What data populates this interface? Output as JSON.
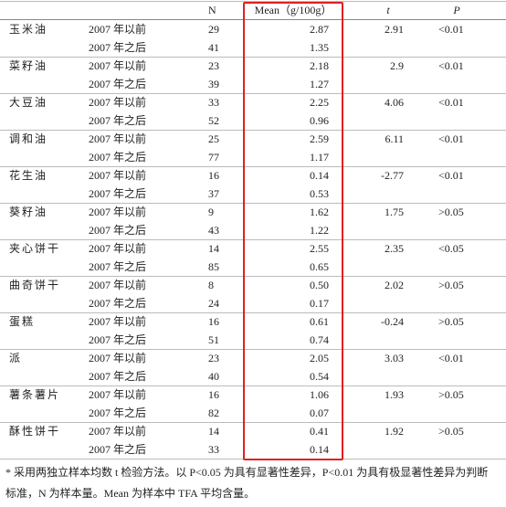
{
  "table": {
    "header": [
      "N",
      "Mean（g/100g）",
      "t",
      "P"
    ],
    "groups": [
      {
        "name": "玉米油",
        "t": "2.91",
        "p": "<0.01",
        "rows": [
          {
            "period": "2007 年以前",
            "n": "29",
            "mean": "2.87"
          },
          {
            "period": "2007 年之后",
            "n": "41",
            "mean": "1.35"
          }
        ]
      },
      {
        "name": "菜籽油",
        "t": "2.9",
        "p": "<0.01",
        "rows": [
          {
            "period": "2007 年以前",
            "n": "23",
            "mean": "2.18"
          },
          {
            "period": "2007 年之后",
            "n": "39",
            "mean": "1.27"
          }
        ]
      },
      {
        "name": "大豆油",
        "t": "4.06",
        "p": "<0.01",
        "rows": [
          {
            "period": "2007 年以前",
            "n": "33",
            "mean": "2.25"
          },
          {
            "period": "2007 年之后",
            "n": "52",
            "mean": "0.96"
          }
        ]
      },
      {
        "name": "调和油",
        "t": "6.11",
        "p": "<0.01",
        "rows": [
          {
            "period": "2007 年以前",
            "n": "25",
            "mean": "2.59"
          },
          {
            "period": "2007 年之后",
            "n": "77",
            "mean": "1.17"
          }
        ]
      },
      {
        "name": "花生油",
        "t": "-2.77",
        "p": "<0.01",
        "rows": [
          {
            "period": "2007 年以前",
            "n": "16",
            "mean": "0.14"
          },
          {
            "period": "2007 年之后",
            "n": "37",
            "mean": "0.53"
          }
        ]
      },
      {
        "name": "葵籽油",
        "t": "1.75",
        "p": ">0.05",
        "rows": [
          {
            "period": "2007 年以前",
            "n": "9",
            "mean": "1.62"
          },
          {
            "period": "2007 年之后",
            "n": "43",
            "mean": "1.22"
          }
        ]
      },
      {
        "name": "夹心饼干",
        "t": "2.35",
        "p": "<0.05",
        "rows": [
          {
            "period": "2007 年以前",
            "n": "14",
            "mean": "2.55"
          },
          {
            "period": "2007 年之后",
            "n": "85",
            "mean": "0.65"
          }
        ]
      },
      {
        "name": "曲奇饼干",
        "t": "2.02",
        "p": ">0.05",
        "rows": [
          {
            "period": "2007 年以前",
            "n": "8",
            "mean": "0.50"
          },
          {
            "period": "2007 年之后",
            "n": "24",
            "mean": "0.17"
          }
        ]
      },
      {
        "name": "蛋糕",
        "t": "-0.24",
        "p": ">0.05",
        "rows": [
          {
            "period": "2007 年以前",
            "n": "16",
            "mean": "0.61"
          },
          {
            "period": "2007 年之后",
            "n": "51",
            "mean": "0.74"
          }
        ]
      },
      {
        "name": "派",
        "t": "3.03",
        "p": "<0.01",
        "rows": [
          {
            "period": "2007 年以前",
            "n": "23",
            "mean": "2.05"
          },
          {
            "period": "2007 年之后",
            "n": "40",
            "mean": "0.54"
          }
        ]
      },
      {
        "name": "薯条薯片",
        "t": "1.93",
        "p": ">0.05",
        "rows": [
          {
            "period": "2007 年以前",
            "n": "16",
            "mean": "1.06"
          },
          {
            "period": "2007 年之后",
            "n": "82",
            "mean": "0.07"
          }
        ]
      },
      {
        "name": "酥性饼干",
        "t": "1.92",
        "p": ">0.05",
        "rows": [
          {
            "period": "2007 年以前",
            "n": "14",
            "mean": "0.41"
          },
          {
            "period": "2007 年之后",
            "n": "33",
            "mean": "0.14"
          }
        ]
      }
    ],
    "footnote": "* 采用两独立样本均数 t 检验方法。以 P<0.05 为具有显著性差异，P<0.01 为具有极显著性差异为判断标准，N 为样本量。Mean 为样本中 TFA 平均含量。"
  }
}
